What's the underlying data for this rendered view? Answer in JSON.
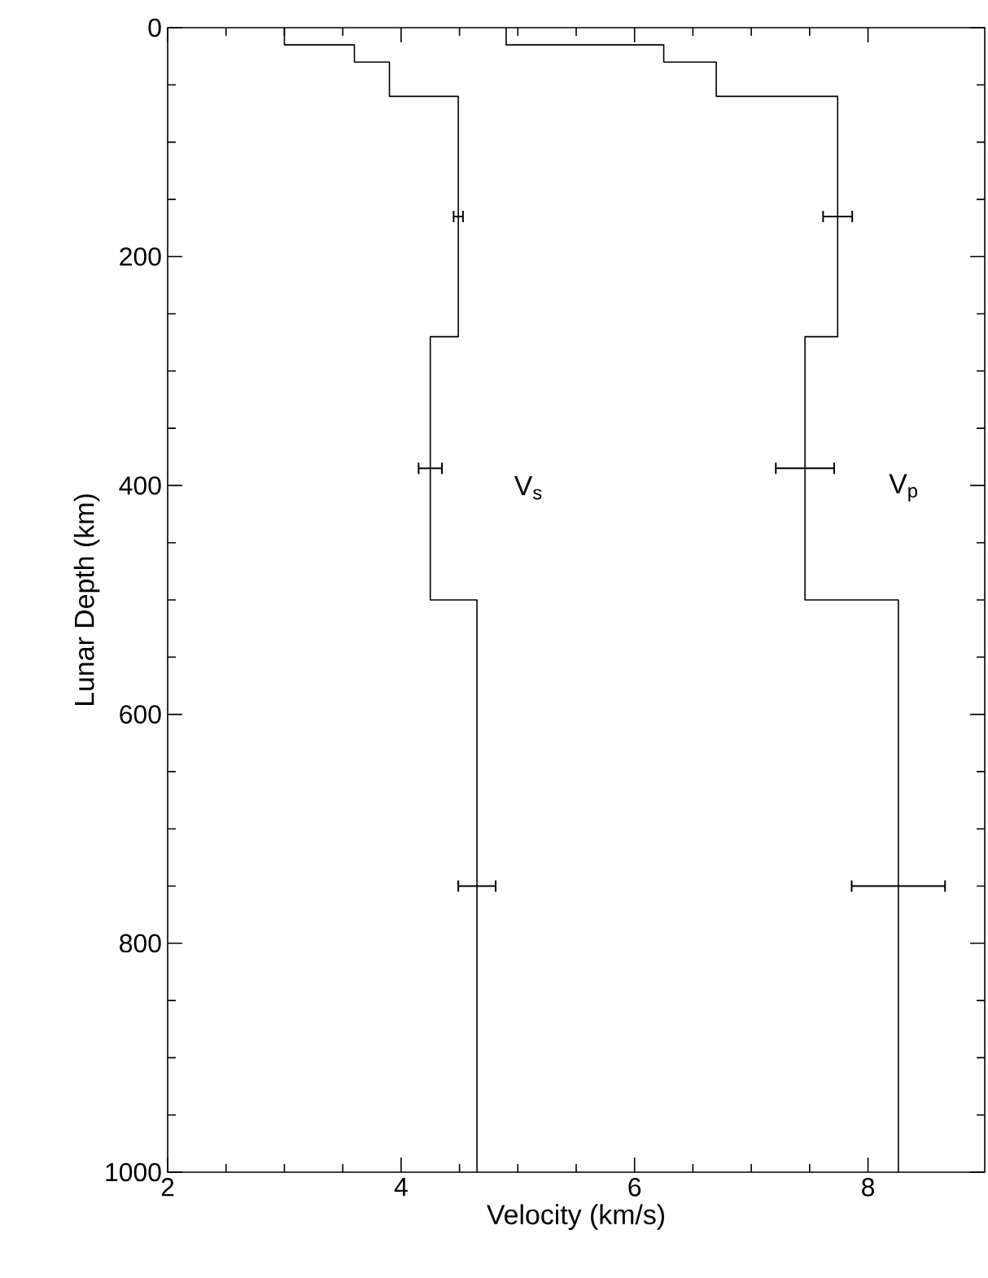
{
  "chart_data": {
    "type": "line",
    "xlabel": "Velocity (km/s)",
    "ylabel": "Lunar Depth (km)",
    "xlim": [
      2,
      9
    ],
    "xticks": [
      2,
      4,
      6,
      8
    ],
    "ylim": [
      1000,
      0
    ],
    "yticks": [
      0,
      200,
      400,
      600,
      800,
      1000
    ],
    "series": [
      {
        "color": "#000000",
        "x": [
          3.0,
          3.0,
          3.6,
          3.6,
          3.9,
          3.9,
          4.49,
          4.49,
          4.49,
          4.25,
          4.25,
          4.25,
          4.65,
          4.65,
          4.65
        ],
        "values": [
          0,
          15,
          15,
          30,
          30,
          60,
          60,
          165,
          270,
          270,
          385,
          500,
          500,
          750,
          1000
        ],
        "xerrors": [
          null,
          null,
          null,
          null,
          null,
          null,
          null,
          0.04,
          null,
          null,
          0.1,
          null,
          null,
          0.16,
          null
        ]
      },
      {
        "color": "#000000",
        "x": [
          4.9,
          4.9,
          6.25,
          6.25,
          6.7,
          6.7,
          7.74,
          7.74,
          7.74,
          7.46,
          7.46,
          7.46,
          8.26,
          8.26,
          8.26
        ],
        "values": [
          0,
          15,
          15,
          30,
          30,
          60,
          60,
          165,
          270,
          270,
          385,
          500,
          500,
          750,
          1000
        ],
        "xerrors": [
          null,
          null,
          null,
          null,
          null,
          null,
          null,
          0.125,
          null,
          null,
          0.25,
          null,
          null,
          0.4,
          null
        ]
      }
    ],
    "annotations": [
      "V$_{s}$",
      "V$_{p}$"
    ]
  }
}
